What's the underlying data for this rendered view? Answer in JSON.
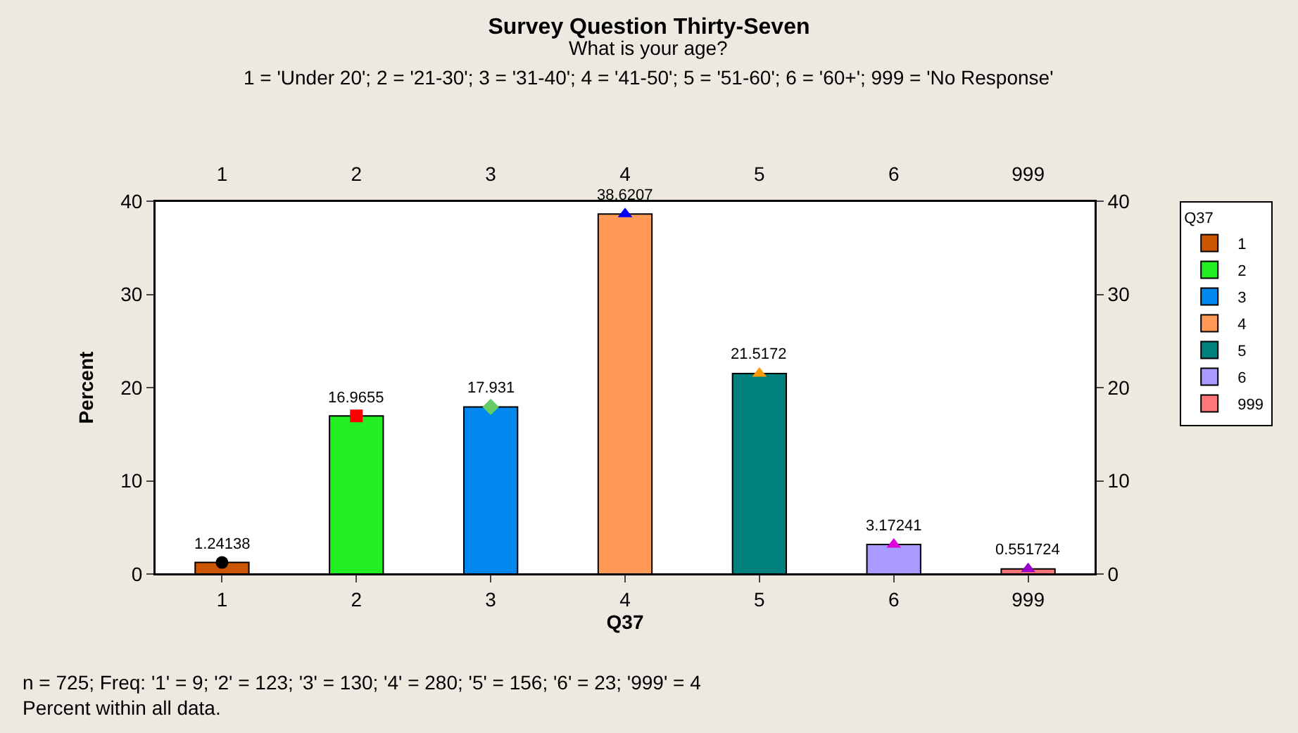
{
  "chart_data": {
    "type": "bar",
    "title": "Survey Question Thirty-Seven",
    "subtitle": "What is your age?",
    "xlabel": "Q37",
    "ylabel": "Percent",
    "legend_title": "Q37",
    "annotations": [
      "1 = 'Under 20'; 2 = '21-30'; 3 = '31-40'; 4 = '41-50'; 5 = '51-60'; 6 = '60+'; 999 = 'No Response'",
      "n = 725; Freq: '1' = 9; '2' = 123; '3' = 130; '4' = 280; '5' = 156; '6' = 23; '999' = 4",
      "Percent within all data."
    ],
    "categories": [
      "1",
      "2",
      "3",
      "4",
      "5",
      "6",
      "999"
    ],
    "series": [
      {
        "name": "1",
        "color": "#cc5500",
        "values": [
          1.24138,
          null,
          null,
          null,
          null,
          null,
          null
        ]
      },
      {
        "name": "2",
        "color": "#22ee22",
        "values": [
          null,
          16.9655,
          null,
          null,
          null,
          null,
          null
        ]
      },
      {
        "name": "3",
        "color": "#0088ee",
        "values": [
          null,
          null,
          17.931,
          null,
          null,
          null,
          null
        ]
      },
      {
        "name": "4",
        "color": "#ff9955",
        "values": [
          null,
          null,
          null,
          38.6207,
          null,
          null,
          null
        ]
      },
      {
        "name": "5",
        "color": "#007f7f",
        "values": [
          null,
          null,
          null,
          null,
          21.5172,
          null,
          null
        ]
      },
      {
        "name": "6",
        "color": "#aa99ff",
        "values": [
          null,
          null,
          null,
          null,
          null,
          3.17241,
          null
        ]
      },
      {
        "name": "999",
        "color": "#ff7777",
        "values": [
          null,
          null,
          null,
          null,
          null,
          null,
          0.551724
        ]
      },
      {
        "type": "scatter",
        "x": [
          "1"
        ],
        "values": [
          1.24138
        ],
        "value_labels": [
          "1.24138"
        ],
        "color": "#000000",
        "marker": "circle"
      },
      {
        "type": "scatter",
        "x": [
          "2"
        ],
        "values": [
          16.9655
        ],
        "value_labels": [
          "16.9655"
        ],
        "color": "#ff0000",
        "marker": "square"
      },
      {
        "type": "scatter",
        "x": [
          "3"
        ],
        "values": [
          17.931
        ],
        "value_labels": [
          "17.931"
        ],
        "color": "#66cc66",
        "marker": "diamond"
      },
      {
        "type": "scatter",
        "x": [
          "4"
        ],
        "values": [
          38.6207
        ],
        "value_labels": [
          "38.6207"
        ],
        "color": "#0000ff",
        "marker": "triangle"
      },
      {
        "type": "scatter",
        "x": [
          "5"
        ],
        "values": [
          21.5172
        ],
        "value_labels": [
          "21.5172"
        ],
        "color": "#ff9900",
        "marker": "triangle"
      },
      {
        "type": "scatter",
        "x": [
          "6"
        ],
        "values": [
          3.17241
        ],
        "value_labels": [
          "3.17241"
        ],
        "color": "#dd00dd",
        "marker": "triangle"
      },
      {
        "type": "scatter",
        "x": [
          "999"
        ],
        "values": [
          0.551724
        ],
        "value_labels": [
          "0.551724"
        ],
        "color": "#9900cc",
        "marker": "triangle"
      }
    ],
    "ylim": [
      0,
      40
    ],
    "yticks": [
      0,
      10,
      20,
      30,
      40
    ],
    "y2lim": [
      0,
      40
    ],
    "y2ticks": [
      0,
      10,
      20,
      30,
      40
    ],
    "grid": false,
    "legend": "right"
  }
}
